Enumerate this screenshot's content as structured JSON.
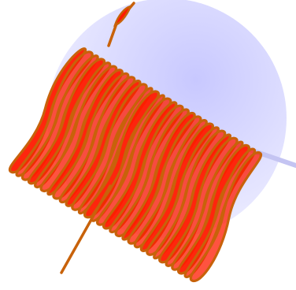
{
  "colors": {
    "background": "#ffffff",
    "sphere_highlight": "#c8c8ff",
    "sphere_mid": "#dedeff",
    "sphere_edge": "#f0f0ff",
    "axis_line": "#c4c4f2",
    "coil_stroke": "#c8620a",
    "coil_fill": "#ff1a00"
  },
  "figure": {
    "elements": [
      "sphere",
      "axis-line",
      "coil"
    ],
    "coil_loop_count": 30
  }
}
